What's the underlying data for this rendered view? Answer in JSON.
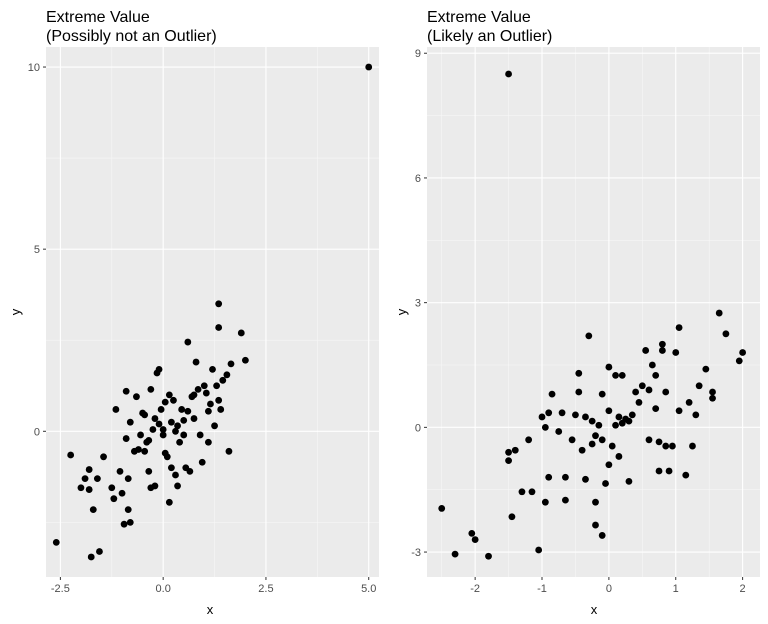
{
  "chart_data": [
    {
      "type": "scatter",
      "title_line1": "Extreme Value",
      "title_line2": "(Possibly not an Outlier)",
      "xlabel": "x",
      "ylabel": "y",
      "xlim": [
        -2.85,
        5.25
      ],
      "ylim": [
        -4.0,
        10.55
      ],
      "x_ticks": [
        -2.5,
        0.0,
        2.5,
        5.0
      ],
      "x_tick_labels": [
        "-2.5",
        "0.0",
        "2.5",
        "5.0"
      ],
      "y_ticks": [
        0,
        5,
        10
      ],
      "y_tick_labels": [
        "0",
        "5",
        "10"
      ],
      "grid": true,
      "point_color": "#000000",
      "points": [
        [
          5.0,
          10.0
        ],
        [
          -2.6,
          -3.05
        ],
        [
          -2.25,
          -0.65
        ],
        [
          -2.0,
          -1.55
        ],
        [
          -1.9,
          -1.3
        ],
        [
          -1.8,
          -1.05
        ],
        [
          -1.8,
          -1.6
        ],
        [
          -1.75,
          -3.45
        ],
        [
          -1.7,
          -2.15
        ],
        [
          -1.6,
          -1.3
        ],
        [
          -1.55,
          -3.3
        ],
        [
          -1.45,
          -0.7
        ],
        [
          -1.25,
          -1.55
        ],
        [
          -1.2,
          -1.85
        ],
        [
          -1.15,
          0.6
        ],
        [
          -1.05,
          -1.1
        ],
        [
          -1.0,
          -1.7
        ],
        [
          -0.95,
          -2.55
        ],
        [
          -0.9,
          1.1
        ],
        [
          -0.9,
          -0.2
        ],
        [
          -0.85,
          -1.3
        ],
        [
          -0.85,
          -2.15
        ],
        [
          -0.8,
          0.25
        ],
        [
          -0.8,
          -2.5
        ],
        [
          -0.7,
          -0.55
        ],
        [
          -0.65,
          0.95
        ],
        [
          -0.6,
          -0.5
        ],
        [
          -0.55,
          -0.1
        ],
        [
          -0.5,
          0.5
        ],
        [
          -0.45,
          0.45
        ],
        [
          -0.45,
          -0.55
        ],
        [
          -0.4,
          -0.3
        ],
        [
          -0.35,
          -0.25
        ],
        [
          -0.35,
          -1.1
        ],
        [
          -0.3,
          -1.55
        ],
        [
          -0.3,
          1.15
        ],
        [
          -0.25,
          0.05
        ],
        [
          -0.2,
          0.35
        ],
        [
          -0.2,
          -1.5
        ],
        [
          -0.15,
          1.6
        ],
        [
          -0.1,
          1.7
        ],
        [
          -0.1,
          0.2
        ],
        [
          -0.05,
          0.6
        ],
        [
          0.0,
          0.05
        ],
        [
          0.0,
          -0.1
        ],
        [
          0.05,
          0.8
        ],
        [
          0.05,
          -0.6
        ],
        [
          0.1,
          -0.7
        ],
        [
          0.15,
          1.0
        ],
        [
          0.15,
          -1.95
        ],
        [
          0.2,
          0.25
        ],
        [
          0.2,
          -1.0
        ],
        [
          0.25,
          0.85
        ],
        [
          0.3,
          0.0
        ],
        [
          0.3,
          -1.2
        ],
        [
          0.35,
          0.15
        ],
        [
          0.35,
          -1.5
        ],
        [
          0.4,
          -0.3
        ],
        [
          0.45,
          0.6
        ],
        [
          0.5,
          0.3
        ],
        [
          0.5,
          -0.1
        ],
        [
          0.55,
          -1.0
        ],
        [
          0.6,
          2.45
        ],
        [
          0.6,
          0.55
        ],
        [
          0.65,
          -1.1
        ],
        [
          0.7,
          0.95
        ],
        [
          0.75,
          1.0
        ],
        [
          0.75,
          0.35
        ],
        [
          0.8,
          1.9
        ],
        [
          0.85,
          1.15
        ],
        [
          0.9,
          -0.1
        ],
        [
          0.95,
          -0.85
        ],
        [
          1.0,
          1.25
        ],
        [
          1.05,
          1.05
        ],
        [
          1.1,
          0.55
        ],
        [
          1.1,
          -0.3
        ],
        [
          1.15,
          0.75
        ],
        [
          1.2,
          1.7
        ],
        [
          1.25,
          0.15
        ],
        [
          1.3,
          1.25
        ],
        [
          1.35,
          0.85
        ],
        [
          1.35,
          2.85
        ],
        [
          1.4,
          0.6
        ],
        [
          1.45,
          1.4
        ],
        [
          1.55,
          1.55
        ],
        [
          1.6,
          -0.55
        ],
        [
          1.65,
          1.85
        ],
        [
          1.9,
          2.7
        ],
        [
          2.0,
          1.95
        ],
        [
          1.35,
          3.5
        ]
      ]
    },
    {
      "type": "scatter",
      "title_line1": "Extreme Value",
      "title_line2": "(Likely an Outlier)",
      "xlabel": "x",
      "ylabel": "y",
      "xlim": [
        -2.72,
        2.26
      ],
      "ylim": [
        -3.6,
        9.15
      ],
      "x_ticks": [
        -2,
        -1,
        0,
        1,
        2
      ],
      "x_tick_labels": [
        "-2",
        "-1",
        "0",
        "1",
        "2"
      ],
      "y_ticks": [
        -3,
        0,
        3,
        6,
        9
      ],
      "y_tick_labels": [
        "-3",
        "0",
        "3",
        "6",
        "9"
      ],
      "grid": true,
      "point_color": "#000000",
      "points": [
        [
          -1.5,
          8.5
        ],
        [
          -2.5,
          -1.95
        ],
        [
          -2.3,
          -3.05
        ],
        [
          -2.05,
          -2.55
        ],
        [
          -2.0,
          -2.7
        ],
        [
          -1.8,
          -3.1
        ],
        [
          -1.5,
          -0.6
        ],
        [
          -1.5,
          -0.8
        ],
        [
          -1.45,
          -2.15
        ],
        [
          -1.4,
          -0.55
        ],
        [
          -1.3,
          -1.55
        ],
        [
          -1.2,
          -0.3
        ],
        [
          -1.15,
          -1.55
        ],
        [
          -1.05,
          -2.95
        ],
        [
          -1.0,
          0.25
        ],
        [
          -0.95,
          0.0
        ],
        [
          -0.95,
          -1.8
        ],
        [
          -0.9,
          -1.2
        ],
        [
          -0.9,
          0.35
        ],
        [
          -0.85,
          0.8
        ],
        [
          -0.75,
          -0.1
        ],
        [
          -0.7,
          0.35
        ],
        [
          -0.65,
          -1.75
        ],
        [
          -0.65,
          -1.2
        ],
        [
          -0.55,
          -0.3
        ],
        [
          -0.5,
          0.3
        ],
        [
          -0.45,
          1.3
        ],
        [
          -0.45,
          0.85
        ],
        [
          -0.4,
          -0.55
        ],
        [
          -0.35,
          -1.25
        ],
        [
          -0.35,
          0.25
        ],
        [
          -0.3,
          2.2
        ],
        [
          -0.25,
          0.15
        ],
        [
          -0.25,
          -0.4
        ],
        [
          -0.2,
          -1.8
        ],
        [
          -0.2,
          -2.35
        ],
        [
          -0.2,
          -0.2
        ],
        [
          -0.15,
          0.05
        ],
        [
          -0.1,
          -0.3
        ],
        [
          -0.1,
          0.8
        ],
        [
          -0.1,
          -2.6
        ],
        [
          -0.05,
          -1.35
        ],
        [
          0.0,
          -0.9
        ],
        [
          0.0,
          0.4
        ],
        [
          0.0,
          1.45
        ],
        [
          0.05,
          -0.45
        ],
        [
          0.1,
          0.05
        ],
        [
          0.1,
          1.25
        ],
        [
          0.15,
          0.25
        ],
        [
          0.15,
          -0.7
        ],
        [
          0.2,
          0.1
        ],
        [
          0.2,
          1.25
        ],
        [
          0.25,
          0.2
        ],
        [
          0.3,
          0.15
        ],
        [
          0.3,
          -1.3
        ],
        [
          0.35,
          0.3
        ],
        [
          0.4,
          0.85
        ],
        [
          0.45,
          0.6
        ],
        [
          0.5,
          1.0
        ],
        [
          0.55,
          1.85
        ],
        [
          0.6,
          0.9
        ],
        [
          0.6,
          -0.3
        ],
        [
          0.65,
          1.5
        ],
        [
          0.7,
          0.45
        ],
        [
          0.7,
          1.25
        ],
        [
          0.75,
          -1.05
        ],
        [
          0.75,
          -0.35
        ],
        [
          0.8,
          1.85
        ],
        [
          0.8,
          2.0
        ],
        [
          0.85,
          0.85
        ],
        [
          0.85,
          -0.45
        ],
        [
          0.9,
          -1.05
        ],
        [
          0.95,
          -0.45
        ],
        [
          1.0,
          1.8
        ],
        [
          1.05,
          2.4
        ],
        [
          1.05,
          0.4
        ],
        [
          1.15,
          -1.15
        ],
        [
          1.2,
          0.6
        ],
        [
          1.25,
          -0.45
        ],
        [
          1.3,
          0.3
        ],
        [
          1.35,
          1.0
        ],
        [
          1.45,
          1.4
        ],
        [
          1.55,
          0.7
        ],
        [
          1.55,
          0.85
        ],
        [
          1.65,
          2.75
        ],
        [
          1.75,
          2.25
        ],
        [
          1.95,
          1.6
        ],
        [
          2.0,
          1.8
        ]
      ]
    }
  ]
}
